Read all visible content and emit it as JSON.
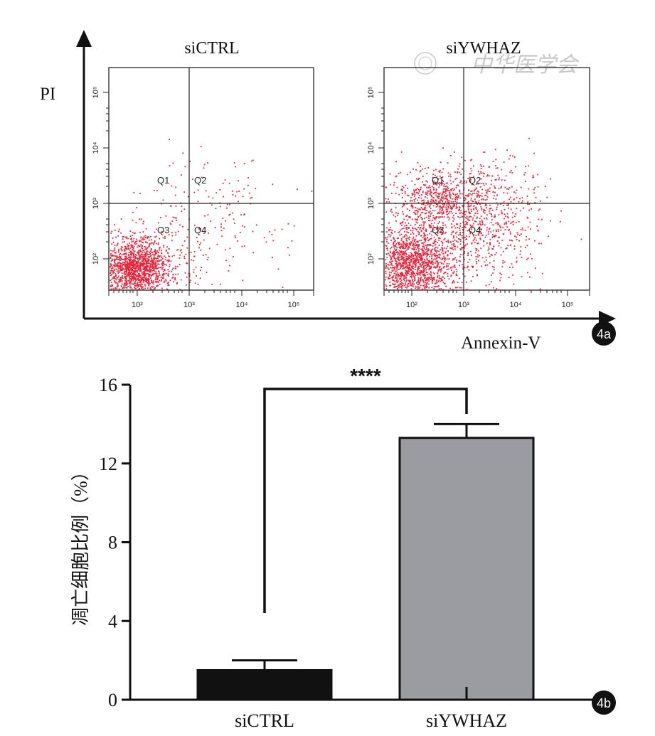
{
  "colors": {
    "dot": "#e8243a",
    "bar_ctrl": "#111111",
    "bar_ywhaz": "#9a9ca2",
    "axis": "#111111",
    "watermark": "#c9c9c9"
  },
  "panel_a": {
    "badge": "4a",
    "y_axis_label": "PI",
    "x_axis_label": "Annexin-V",
    "plots": [
      {
        "name": "siCTRL",
        "title": "siCTRL"
      },
      {
        "name": "siYWHAZ",
        "title": "siYWHAZ"
      }
    ],
    "quadrant_labels": [
      "Q1",
      "Q2",
      "Q3",
      "Q4"
    ],
    "tick_labels": [
      "10²",
      "10³",
      "10⁴",
      "10⁵"
    ],
    "watermark": "中华医学会"
  },
  "chart_data": {
    "type": "bar",
    "title": "",
    "xlabel": "",
    "ylabel": "凋亡细胞比例（%）",
    "categories": [
      "siCTRL",
      "siYWHAZ"
    ],
    "values": [
      1.5,
      13.3
    ],
    "errors": [
      0.5,
      0.7
    ],
    "ylim": [
      0,
      16
    ],
    "yticks": [
      0,
      4,
      8,
      12,
      16
    ],
    "ytick_labels": [
      "0",
      "4",
      "8",
      "12",
      "16"
    ],
    "significance": "****",
    "badge": "4b"
  }
}
